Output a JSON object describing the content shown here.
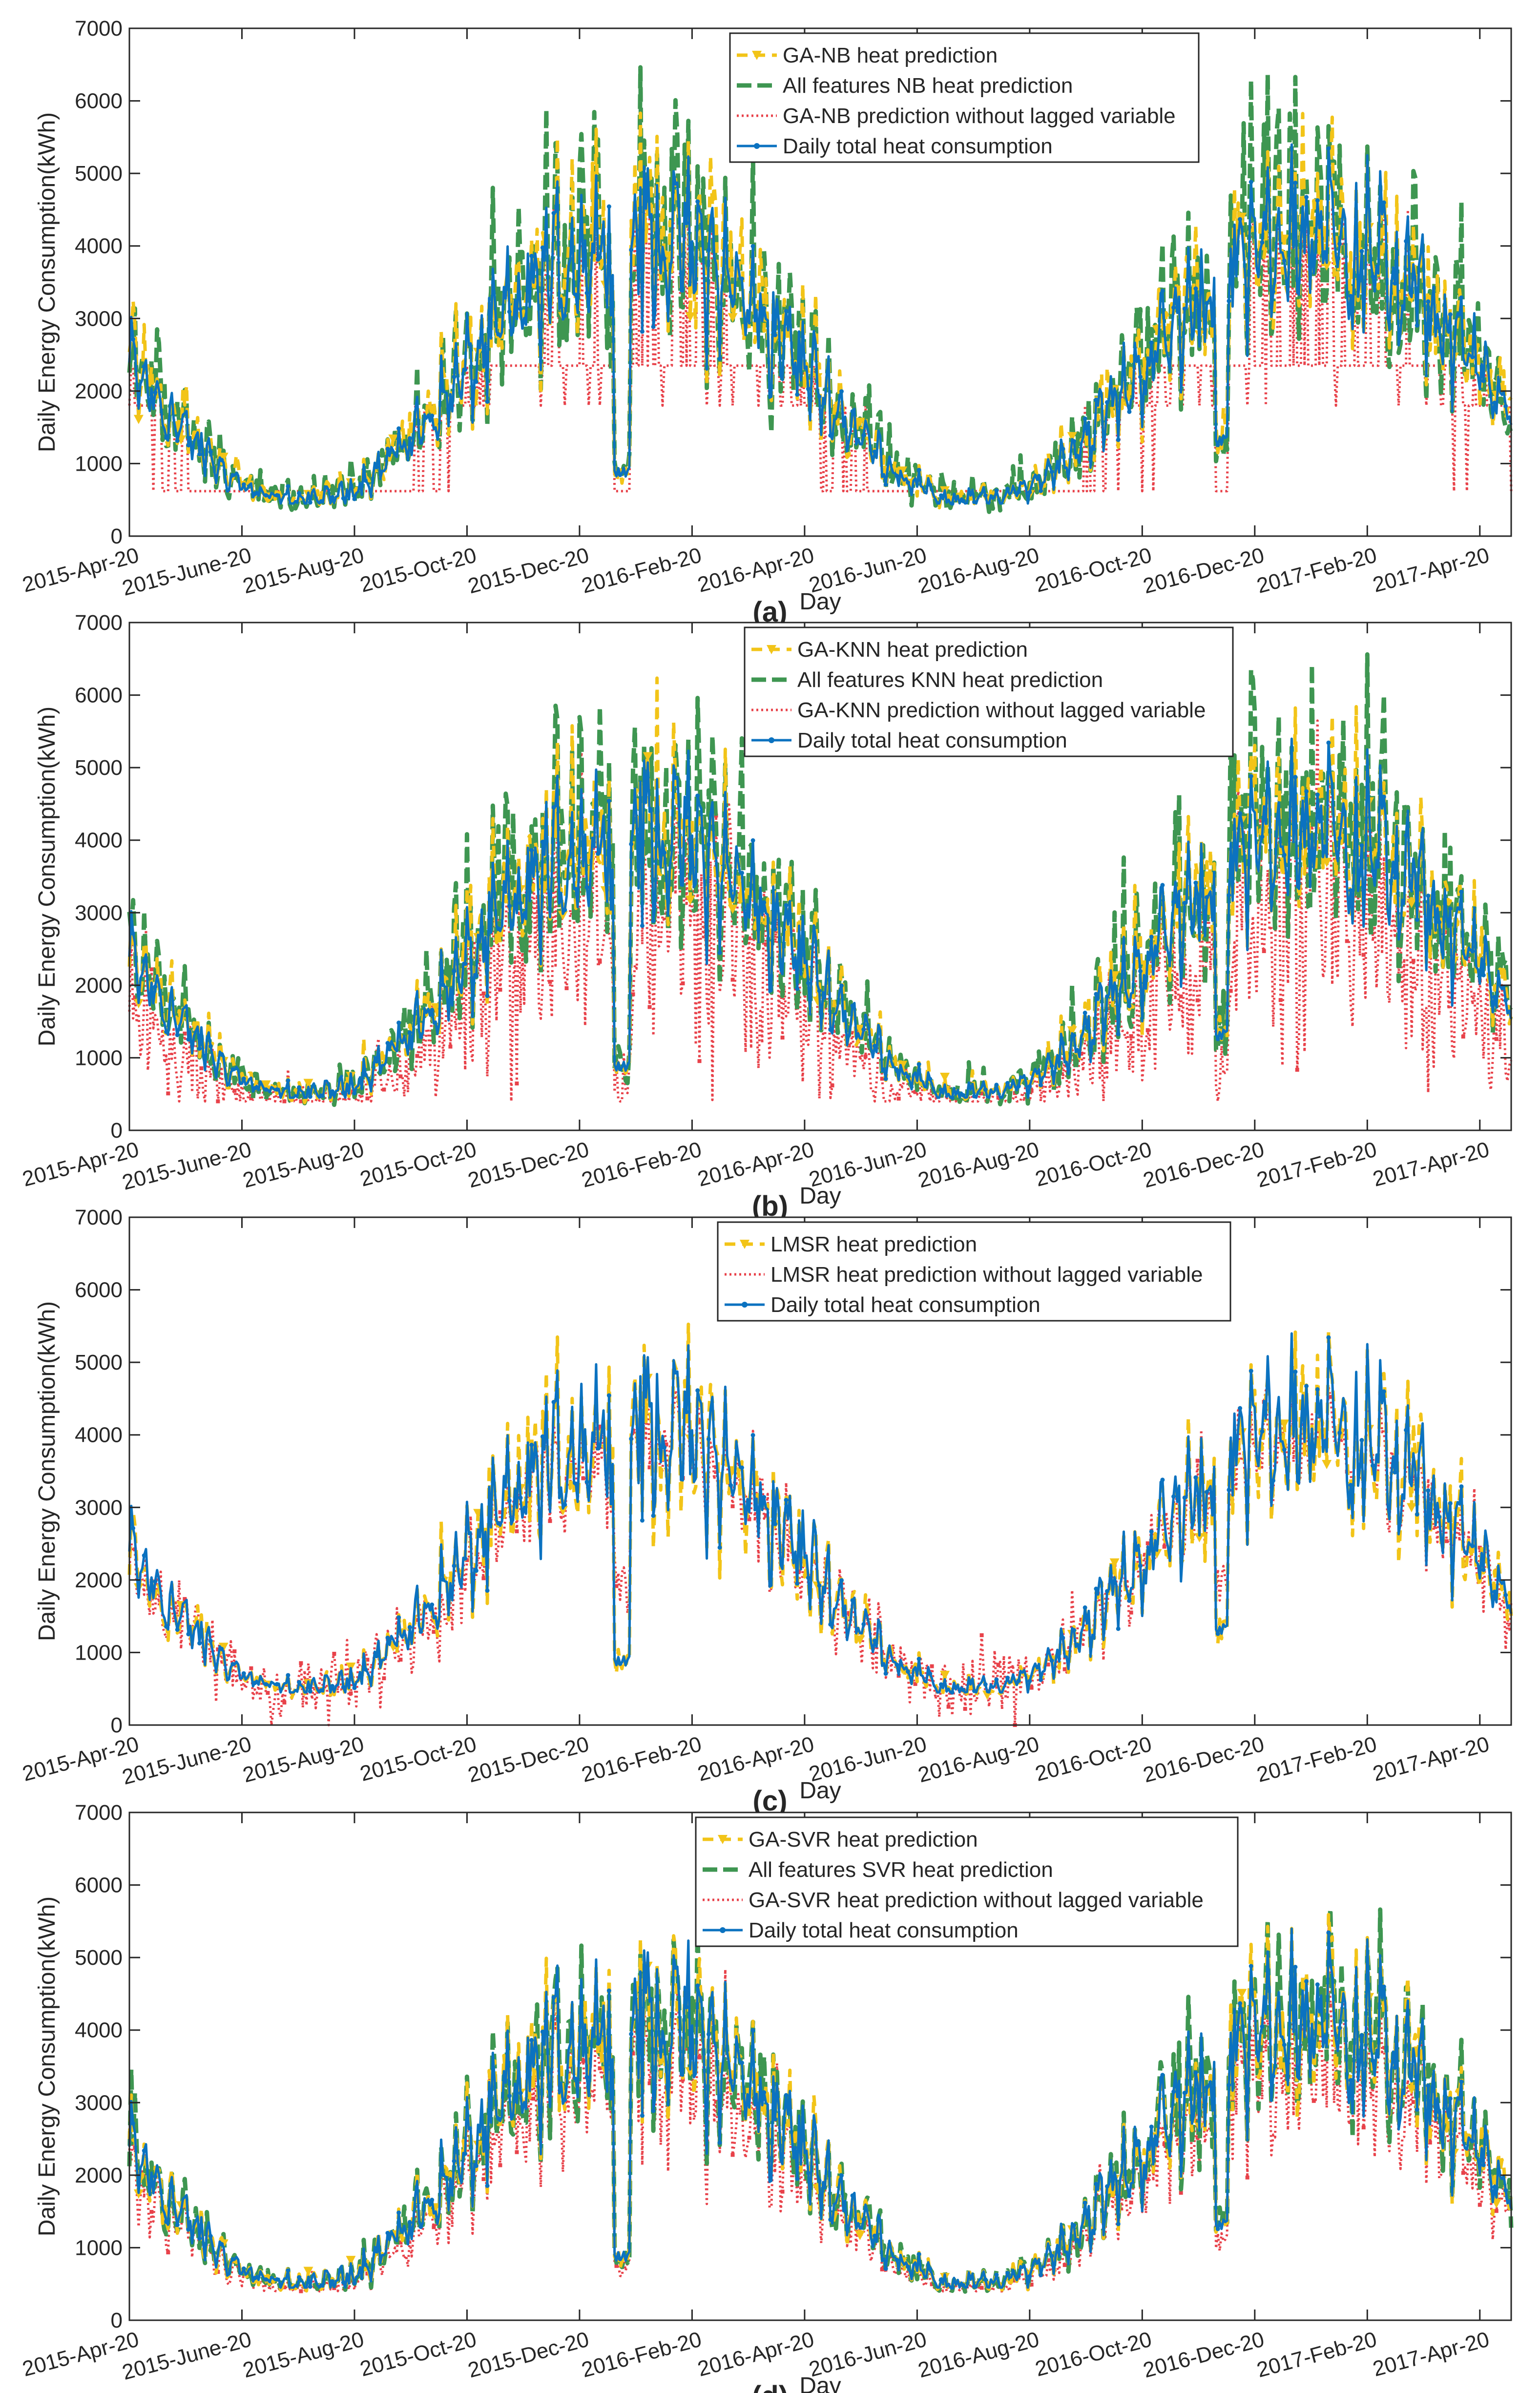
{
  "figure": {
    "xlabel": "Day",
    "ylabel": "Daily Energy Consumption(kWh)",
    "xticks": [
      "2015-Apr-20",
      "2015-June-20",
      "2015-Aug-20",
      "2015-Oct-20",
      "2015-Dec-20",
      "2016-Feb-20",
      "2016-Apr-20",
      "2016-Jun-20",
      "2016-Aug-20",
      "2016-Oct-20",
      "2016-Dec-20",
      "2017-Feb-20",
      "2017-Apr-20"
    ],
    "yticks": [
      0,
      1000,
      2000,
      3000,
      4000,
      5000,
      6000,
      7000
    ],
    "colors": {
      "ga": "#f2c418",
      "all": "#3e9651",
      "nolag": "#e8424a",
      "actual": "#0b72c0"
    }
  },
  "chart_data": [
    {
      "type": "line",
      "caption": "(a)",
      "ylim": [
        0,
        7000
      ],
      "legend_position": "top-center",
      "series": [
        {
          "name": "GA-NB heat prediction",
          "key": "ga"
        },
        {
          "name": "All features NB heat prediction",
          "key": "all"
        },
        {
          "name": "GA-NB prediction without lagged variable",
          "key": "nolag"
        },
        {
          "name": "Daily total heat consumption",
          "key": "actual"
        }
      ]
    },
    {
      "type": "line",
      "caption": "(b)",
      "ylim": [
        0,
        7000
      ],
      "legend_position": "top-center",
      "series": [
        {
          "name": "GA-KNN heat prediction",
          "key": "ga"
        },
        {
          "name": "All features KNN heat prediction",
          "key": "all"
        },
        {
          "name": "GA-KNN prediction without lagged variable",
          "key": "nolag"
        },
        {
          "name": "Daily total heat consumption",
          "key": "actual"
        }
      ]
    },
    {
      "type": "line",
      "caption": "(c)",
      "ylim": [
        0,
        7000
      ],
      "legend_position": "top-center",
      "series": [
        {
          "name": "LMSR heat prediction",
          "key": "ga"
        },
        {
          "name": "LMSR heat prediction without lagged variable",
          "key": "nolag"
        },
        {
          "name": "Daily total heat consumption",
          "key": "actual"
        }
      ]
    },
    {
      "type": "line",
      "caption": "(d)",
      "ylim": [
        0,
        7000
      ],
      "legend_position": "top-center",
      "series": [
        {
          "name": "GA-SVR heat prediction",
          "key": "ga"
        },
        {
          "name": "All features SVR heat prediction",
          "key": "all"
        },
        {
          "name": "GA-SVR heat prediction without lagged variable",
          "key": "nolag"
        },
        {
          "name": "Daily total heat consumption",
          "key": "actual"
        }
      ]
    }
  ]
}
